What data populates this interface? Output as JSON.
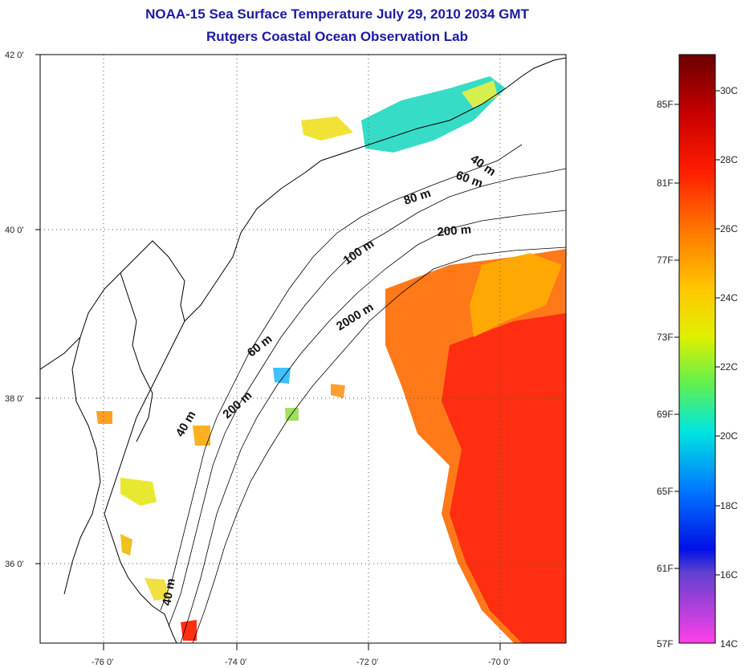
{
  "title": {
    "line1": "NOAA-15 Sea Surface Temperature July 29, 2010 2034 GMT",
    "line2": "Rutgers Coastal Ocean Observation Lab"
  },
  "axes": {
    "lat_ticks": [
      "42 0'",
      "40 0'",
      "38 0'",
      "36 0'"
    ],
    "lon_ticks": [
      "-76 0'",
      "-74 0'",
      "-72 0'",
      "-70 0'"
    ]
  },
  "contour_labels": [
    "40 m",
    "60 m",
    "80 m",
    "200 m",
    "100 m",
    "2000 m",
    "60 m",
    "200 m",
    "40 m",
    "40 m"
  ],
  "colorbar": {
    "fahrenheit": [
      "85F",
      "81F",
      "77F",
      "73F",
      "69F",
      "65F",
      "61F",
      "57F"
    ],
    "celsius": [
      "30C",
      "28C",
      "26C",
      "24C",
      "22C",
      "20C",
      "18C",
      "16C",
      "14C"
    ],
    "colors": [
      "#7a0000",
      "#d40000",
      "#ff2a00",
      "#ff7a00",
      "#ffd200",
      "#c8f000",
      "#40f060",
      "#00e0e0",
      "#0080ff",
      "#0000e0",
      "#8030d0",
      "#ff30e0"
    ]
  }
}
